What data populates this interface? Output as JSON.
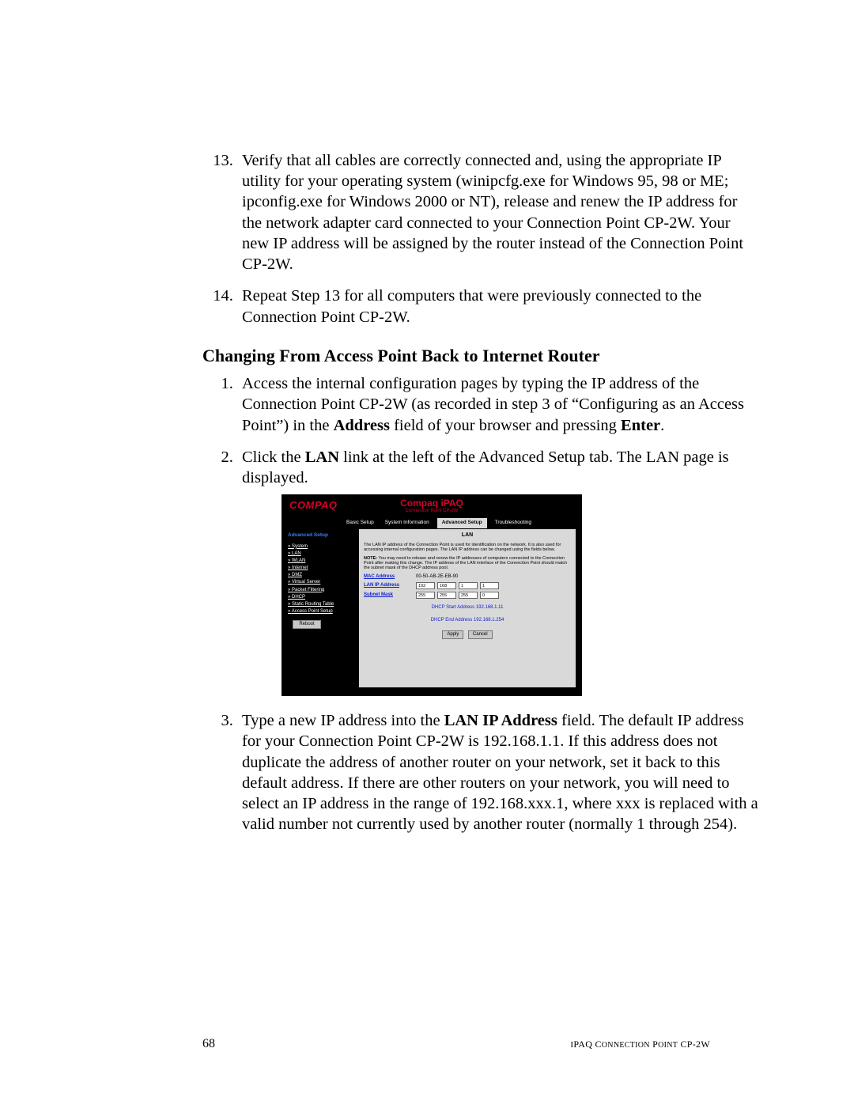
{
  "steps_first": [
    {
      "n": 13,
      "text": "Verify that all cables are correctly connected and, using the appropriate IP utility for your operating system (winipcfg.exe for Windows 95, 98 or ME; ipconfig.exe for Windows 2000 or NT), release and renew the IP address for the network adapter card connected to your Connection Point CP-2W. Your new IP address will be assigned by the router instead of the Connection Point CP-2W."
    },
    {
      "n": 14,
      "text": "Repeat Step 13 for all computers that were previously connected to the Connection Point CP-2W."
    }
  ],
  "section_heading": "Changing From Access Point Back to Internet Router",
  "steps_second": [
    {
      "n": 1,
      "html": "Access the internal configuration pages by typing the IP address of the Connection Point CP-2W (as recorded in step 3 of “Configuring as an Access Point”) in the <b>Address</b> field of your browser and pressing <b>Enter</b>."
    },
    {
      "n": 2,
      "html": "Click the <b>LAN</b> link at the left of the Advanced Setup tab. The LAN page is displayed."
    },
    {
      "n": 3,
      "html": "Type a new IP address into the <b>LAN IP Address</b> field. The default IP address for your Connection Point CP-2W is 192.168.1.1. If this address does not duplicate the address of another router on your network, set it back to this default address. If there are other routers on your network, you will need to select an IP address in the range of 192.168.xxx.1, where xxx is replaced with a valid number not currently used by another router (normally 1 through 254)."
    }
  ],
  "screenshot": {
    "brand": "COMPAQ",
    "title": "Compaq iPAQ",
    "subtitle": "Connection Point CP-2W",
    "tabs": [
      "Basic Setup",
      "System Information",
      "Advanced Setup",
      "Troubleshooting"
    ],
    "active_tab_index": 2,
    "sidebar_heading": "Advanced Setup",
    "sidebar_items": [
      "System",
      "LAN",
      "WLAN",
      "Internet",
      "DMZ",
      "Virtual Server",
      "Packet Filtering",
      "DHCP",
      "Static Routing Table",
      "Access Point Setup"
    ],
    "reboot_label": "Reboot",
    "panel": {
      "title": "LAN",
      "para1": "The LAN IP address of the Connection Point is used for identification on the network. It is also used for accessing internal configuration pages. The LAN IP address can be changed using the fields below.",
      "note_label": "NOTE:",
      "note_text": " You may need to release and renew the IP addresses of computers connected to the Connection Point after making this change. The IP address of the LAN interface of the Connection Point should match the subnet mask of the DHCP address pool.",
      "mac_label": "MAC Address",
      "mac_value": "00-50-AB-2E-EB-90",
      "lanip_label": "LAN IP Address",
      "lanip": [
        "192",
        "168",
        "1",
        "1"
      ],
      "subnet_label": "Subnet Mask",
      "subnet": [
        "255",
        "255",
        "255",
        "0"
      ],
      "dhcp_start": "DHCP Start Address 192.168.1.11",
      "dhcp_end": "DHCP End Address 192.168.1.254",
      "apply": "Apply",
      "cancel": "Cancel"
    }
  },
  "footer": {
    "page": "68",
    "product": "iPAQ CONNECTION POINT CP-2W"
  }
}
